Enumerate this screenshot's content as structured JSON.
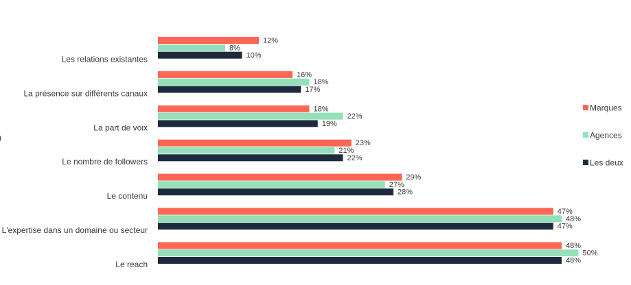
{
  "chart_data": {
    "type": "bar",
    "orientation": "horizontal",
    "categories": [
      "Les relations existantes",
      "La présence sur différents canaux",
      "La part de voix",
      "Le nombre de followers",
      "Le contenu",
      "L'expertise dans un domaine ou secteur",
      "Le reach"
    ],
    "series": [
      {
        "name": "Marques",
        "color": "#ff6654",
        "values": [
          12,
          16,
          18,
          23,
          29,
          47,
          48
        ]
      },
      {
        "name": "Agences",
        "color": "#94e0b8",
        "values": [
          8,
          18,
          22,
          21,
          27,
          48,
          50
        ]
      },
      {
        "name": "Les deux",
        "color": "#1e2a3e",
        "values": [
          10,
          17,
          19,
          22,
          28,
          47,
          48
        ]
      }
    ],
    "value_suffix": "%",
    "xlim": [
      0,
      50
    ],
    "grid": false,
    "legend_position": "right",
    "title": "",
    "xlabel": "",
    "ylabel": ""
  },
  "edge_glyph": ")"
}
